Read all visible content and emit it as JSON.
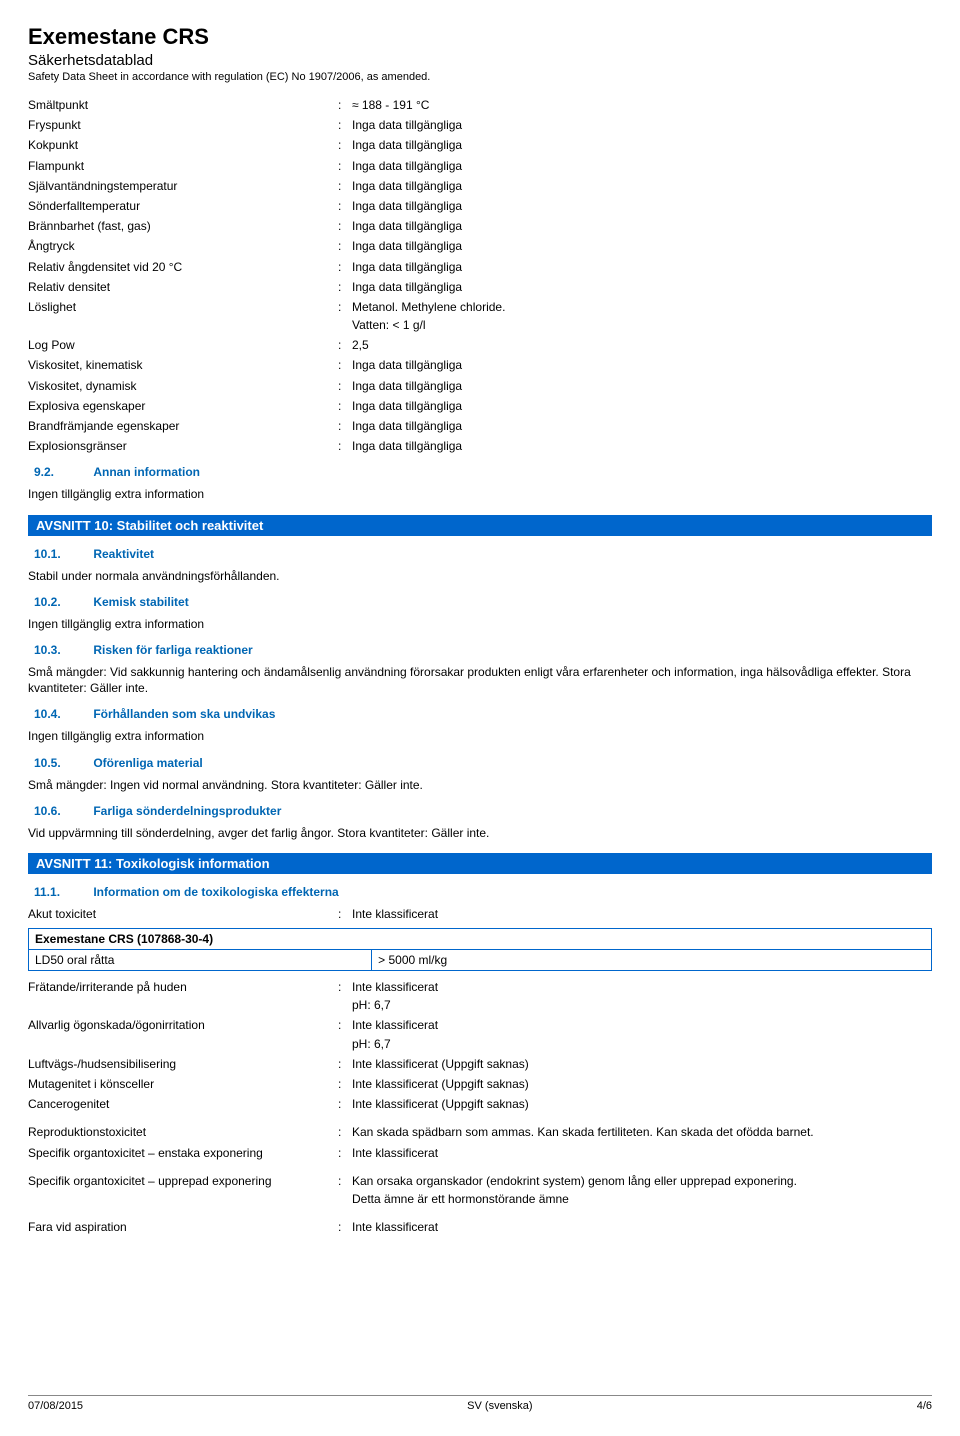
{
  "header": {
    "title": "Exemestane CRS",
    "subtitle": "Säkerhetsdatablad",
    "regline": "Safety Data Sheet in accordance with regulation (EC) No 1907/2006, as amended."
  },
  "properties": [
    {
      "label": "Smältpunkt",
      "value": "≈ 188 - 191 °C"
    },
    {
      "label": "Fryspunkt",
      "value": "Inga data tillgängliga"
    },
    {
      "label": "Kokpunkt",
      "value": "Inga data tillgängliga"
    },
    {
      "label": "Flampunkt",
      "value": "Inga data tillgängliga"
    },
    {
      "label": "Självantändningstemperatur",
      "value": "Inga data tillgängliga"
    },
    {
      "label": "Sönderfalltemperatur",
      "value": "Inga data tillgängliga"
    },
    {
      "label": "Brännbarhet (fast, gas)",
      "value": "Inga data tillgängliga"
    },
    {
      "label": "Ångtryck",
      "value": "Inga data tillgängliga"
    },
    {
      "label": "Relativ ångdensitet vid 20 °C",
      "value": "Inga data tillgängliga"
    },
    {
      "label": "Relativ densitet",
      "value": "Inga data tillgängliga"
    },
    {
      "label": "Löslighet",
      "value": "Metanol. Methylene chloride."
    },
    {
      "label": "",
      "value": "Vatten: < 1 g/l",
      "continuation": true
    },
    {
      "label": "Log Pow",
      "value": "2,5"
    },
    {
      "label": "Viskositet, kinematisk",
      "value": "Inga data tillgängliga"
    },
    {
      "label": "Viskositet, dynamisk",
      "value": "Inga data tillgängliga"
    },
    {
      "label": "Explosiva egenskaper",
      "value": "Inga data tillgängliga"
    },
    {
      "label": "Brandfrämjande egenskaper",
      "value": "Inga data tillgängliga"
    },
    {
      "label": "Explosionsgränser",
      "value": "Inga data tillgängliga"
    }
  ],
  "s9_2": {
    "num": "9.2.",
    "title": "Annan information",
    "body": "Ingen tillgänglig extra information"
  },
  "avsnitt10": {
    "bar": "AVSNITT 10: Stabilitet och reaktivitet",
    "s1": {
      "num": "10.1.",
      "title": "Reaktivitet",
      "body": "Stabil under normala användningsförhållanden."
    },
    "s2": {
      "num": "10.2.",
      "title": "Kemisk stabilitet",
      "body": "Ingen tillgänglig extra information"
    },
    "s3": {
      "num": "10.3.",
      "title": "Risken för farliga reaktioner",
      "body": "Små mängder: Vid sakkunnig hantering och ändamålsenlig användning förorsakar produkten enligt våra erfarenheter och information, inga hälsovådliga effekter. Stora kvantiteter: Gäller inte."
    },
    "s4": {
      "num": "10.4.",
      "title": "Förhållanden som ska undvikas",
      "body": "Ingen tillgänglig extra information"
    },
    "s5": {
      "num": "10.5.",
      "title": "Oförenliga material",
      "body": "Små mängder: Ingen vid normal användning. Stora kvantiteter: Gäller inte."
    },
    "s6": {
      "num": "10.6.",
      "title": "Farliga sönderdelningsprodukter",
      "body": "Vid uppvärmning till sönderdelning, avger det farlig ångor. Stora kvantiteter: Gäller inte."
    }
  },
  "avsnitt11": {
    "bar": "AVSNITT 11: Toxikologisk information",
    "s1": {
      "num": "11.1.",
      "title": "Information om de toxikologiska effekterna"
    },
    "akut": {
      "label": "Akut toxicitet",
      "value": "Inte klassificerat"
    },
    "table": {
      "header": "Exemestane CRS (107868-30-4)",
      "r1c1": "LD50 oral råtta",
      "r1c2": "> 5000 ml/kg"
    },
    "rows": [
      {
        "label": "Frätande/irriterande på huden",
        "value": "Inte klassificerat"
      },
      {
        "label": "",
        "value": "pH: 6,7",
        "continuation": true
      },
      {
        "label": "Allvarlig ögonskada/ögonirritation",
        "value": "Inte klassificerat"
      },
      {
        "label": "",
        "value": "pH: 6,7",
        "continuation": true
      },
      {
        "label": "Luftvägs-/hudsensibilisering",
        "value": "Inte klassificerat (Uppgift saknas)"
      },
      {
        "label": "Mutagenitet i könsceller",
        "value": "Inte klassificerat (Uppgift saknas)"
      },
      {
        "label": "Cancerogenitet",
        "value": "Inte klassificerat (Uppgift saknas)"
      }
    ],
    "rows2": [
      {
        "label": "Reproduktionstoxicitet",
        "value": "Kan skada spädbarn som ammas. Kan skada fertiliteten. Kan skada det ofödda barnet."
      },
      {
        "label": "Specifik organtoxicitet – enstaka exponering",
        "value": "Inte klassificerat"
      }
    ],
    "rows3": [
      {
        "label": "Specifik organtoxicitet – upprepad exponering",
        "value": "Kan orsaka organskador (endokrint system) genom lång eller upprepad exponering."
      },
      {
        "label": "",
        "value": "Detta ämne är ett hormonstörande ämne",
        "continuation": true
      }
    ],
    "rows4": [
      {
        "label": "Fara vid aspiration",
        "value": "Inte klassificerat"
      }
    ]
  },
  "footer": {
    "date": "07/08/2015",
    "lang": "SV (svenska)",
    "page": "4/6"
  }
}
